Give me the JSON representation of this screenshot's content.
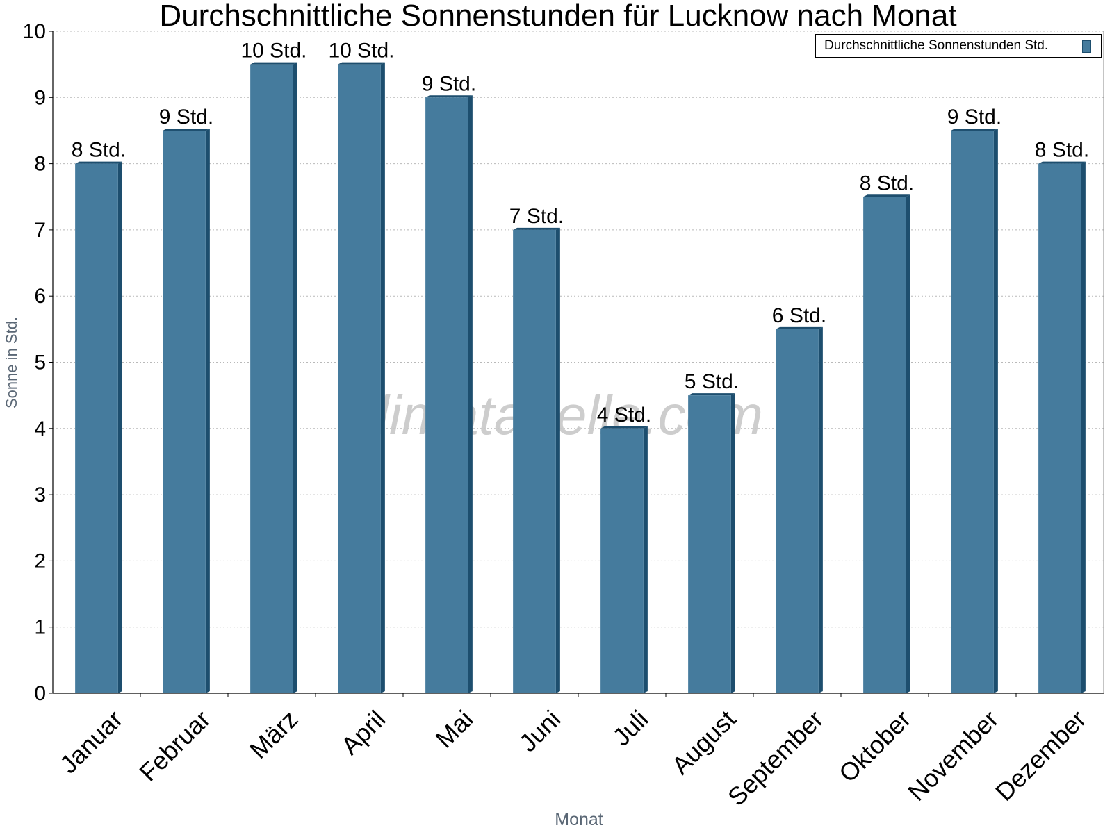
{
  "chart_data": {
    "type": "bar",
    "title": "Durchschnittliche Sonnenstunden für Lucknow nach Monat",
    "xlabel": "Monat",
    "ylabel": "Sonne in Std.",
    "ylim": [
      0,
      10
    ],
    "yticks": [
      "0",
      "1",
      "2",
      "3",
      "4",
      "5",
      "6",
      "7",
      "8",
      "9",
      "10"
    ],
    "grid": true,
    "legend_position": "top-right",
    "categories": [
      "Januar",
      "Februar",
      "März",
      "April",
      "Mai",
      "Juni",
      "Juli",
      "August",
      "September",
      "Oktober",
      "November",
      "Dezember"
    ],
    "series": [
      {
        "name": "Durchschnittliche Sonnenstunden Std.",
        "values": [
          8,
          8.5,
          9.5,
          9.5,
          9,
          7,
          4,
          4.5,
          5.5,
          7.5,
          8.5,
          8
        ],
        "labels": [
          "8 Std.",
          "9 Std.",
          "10 Std.",
          "10 Std.",
          "9 Std.",
          "7 Std.",
          "4 Std.",
          "5 Std.",
          "6 Std.",
          "8 Std.",
          "9 Std.",
          "8 Std."
        ],
        "color": "#457b9d",
        "edge_color": "#1d4e6e"
      }
    ],
    "watermark": "klimatabelle.com"
  }
}
